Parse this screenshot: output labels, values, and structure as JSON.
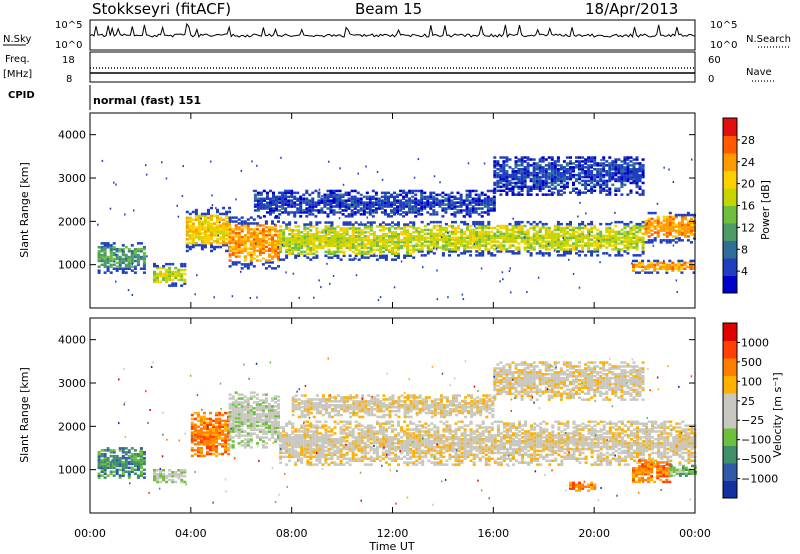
{
  "header": {
    "station": "Stokkseyri (fitACF)",
    "beam": "Beam 15",
    "date": "18/Apr/2013"
  },
  "noise_panel": {
    "left_label": "N.Sky",
    "right_label": "N.Search",
    "ticks_left": [
      "10^5",
      "10^0"
    ],
    "ticks_right": [
      "10^5",
      "10^0"
    ]
  },
  "freq_panel": {
    "left_label_1": "Freq.",
    "left_label_2": "[MHz]",
    "right_label": "Nave",
    "ticks_left": [
      "18",
      "8"
    ],
    "ticks_right": [
      "60",
      "0"
    ]
  },
  "cpid_panel": {
    "label": "CPID",
    "value": "normal (fast) 151"
  },
  "power_colorbar": {
    "title": "Power [dB]",
    "ticks": [
      "28",
      "24",
      "20",
      "16",
      "12",
      "8",
      "4"
    ],
    "colors": [
      "#0000cc",
      "#1f3fbf",
      "#2e6f99",
      "#4d9a66",
      "#6fbf3f",
      "#c8d400",
      "#ffd000",
      "#ff9a00",
      "#ff5a00",
      "#e01010"
    ]
  },
  "velocity_colorbar": {
    "title": "Velocity [m s⁻¹]",
    "ticks": [
      "1000",
      "500",
      "100",
      "25",
      "−25",
      "−100",
      "−500",
      "−1000"
    ],
    "colors": [
      "#1530a0",
      "#2f5aa8",
      "#3f8f6a",
      "#6fbf3f",
      "#c8c8c0",
      "#c8c8c0",
      "#ffb000",
      "#ff8000",
      "#ff4000",
      "#e00000"
    ]
  },
  "x_axis": {
    "label": "Time UT",
    "ticks": [
      "00:00",
      "04:00",
      "08:00",
      "12:00",
      "16:00",
      "20:00",
      "00:00"
    ]
  },
  "chart_data": [
    {
      "type": "heatmap",
      "name": "power",
      "ylabel": "Slant Range [km]",
      "xlabel": "",
      "xlim": [
        0,
        24
      ],
      "ylim": [
        0,
        4500
      ],
      "yticks": [
        "1000",
        "2000",
        "3000",
        "4000"
      ],
      "bands": [
        {
          "t0": 0.3,
          "t1": 2.2,
          "r0": 800,
          "r1": 1500,
          "level": 3
        },
        {
          "t0": 2.5,
          "t1": 3.8,
          "r0": 500,
          "r1": 1000,
          "level": 5
        },
        {
          "t0": 3.8,
          "t1": 5.5,
          "r0": 1300,
          "r1": 2300,
          "level": 6
        },
        {
          "t0": 5.5,
          "t1": 7.5,
          "r0": 900,
          "r1": 2100,
          "level": 7
        },
        {
          "t0": 7.5,
          "t1": 13,
          "r0": 1100,
          "r1": 2000,
          "level": 5
        },
        {
          "t0": 13,
          "t1": 22,
          "r0": 1200,
          "r1": 2000,
          "level": 5
        },
        {
          "t0": 22,
          "t1": 24,
          "r0": 1500,
          "r1": 2200,
          "level": 7
        },
        {
          "t0": 6.5,
          "t1": 16,
          "r0": 2100,
          "r1": 2700,
          "level": 1
        },
        {
          "t0": 16,
          "t1": 22,
          "r0": 2600,
          "r1": 3500,
          "level": 1
        },
        {
          "t0": 21.5,
          "t1": 24,
          "r0": 800,
          "r1": 1100,
          "level": 7
        }
      ]
    },
    {
      "type": "heatmap",
      "name": "velocity",
      "ylabel": "Slant Range [km]",
      "xlabel": "Time UT",
      "xlim": [
        0,
        24
      ],
      "ylim": [
        0,
        4500
      ],
      "yticks": [
        "1000",
        "2000",
        "3000",
        "4000"
      ],
      "bands": [
        {
          "t0": 0.3,
          "t1": 2.2,
          "r0": 800,
          "r1": 1500,
          "level": 2
        },
        {
          "t0": 2.5,
          "t1": 3.8,
          "r0": 700,
          "r1": 1000,
          "level": 4
        },
        {
          "t0": 4.0,
          "t1": 5.5,
          "r0": 1300,
          "r1": 2300,
          "level": 7
        },
        {
          "t0": 5.5,
          "t1": 7.5,
          "r0": 1500,
          "r1": 2800,
          "level": 4
        },
        {
          "t0": 7.5,
          "t1": 24,
          "r0": 1100,
          "r1": 2100,
          "level": 5
        },
        {
          "t0": 8,
          "t1": 16,
          "r0": 2200,
          "r1": 2700,
          "level": 5
        },
        {
          "t0": 16,
          "t1": 22,
          "r0": 2600,
          "r1": 3500,
          "level": 5
        },
        {
          "t0": 21.5,
          "t1": 23,
          "r0": 700,
          "r1": 1200,
          "level": 7
        },
        {
          "t0": 23,
          "t1": 24,
          "r0": 800,
          "r1": 1100,
          "level": 3
        },
        {
          "t0": 19,
          "t1": 20,
          "r0": 500,
          "r1": 700,
          "level": 7
        }
      ]
    }
  ]
}
